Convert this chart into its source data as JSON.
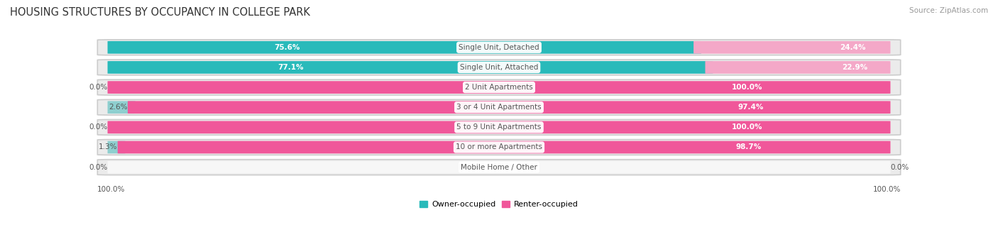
{
  "title": "HOUSING STRUCTURES BY OCCUPANCY IN COLLEGE PARK",
  "source": "Source: ZipAtlas.com",
  "categories": [
    "Single Unit, Detached",
    "Single Unit, Attached",
    "2 Unit Apartments",
    "3 or 4 Unit Apartments",
    "5 to 9 Unit Apartments",
    "10 or more Apartments",
    "Mobile Home / Other"
  ],
  "owner_pct": [
    75.6,
    77.1,
    0.0,
    2.6,
    0.0,
    1.3,
    0.0
  ],
  "renter_pct": [
    24.4,
    22.9,
    100.0,
    97.4,
    100.0,
    98.7,
    0.0
  ],
  "owner_color": "#29BABA",
  "renter_color": "#F0579A",
  "owner_color_light": "#8ECFCF",
  "renter_color_light": "#F4A8C8",
  "row_bg_color": "#EBEBEB",
  "row_bg_inner": "#F7F7F7",
  "label_color": "#555555",
  "title_color": "#333333",
  "source_color": "#999999",
  "title_fontsize": 10.5,
  "source_fontsize": 7.5,
  "pct_fontsize": 7.5,
  "category_fontsize": 7.5,
  "axis_label_fontsize": 7.5,
  "bar_height": 0.62,
  "figsize": [
    14.06,
    3.41
  ],
  "dpi": 100
}
